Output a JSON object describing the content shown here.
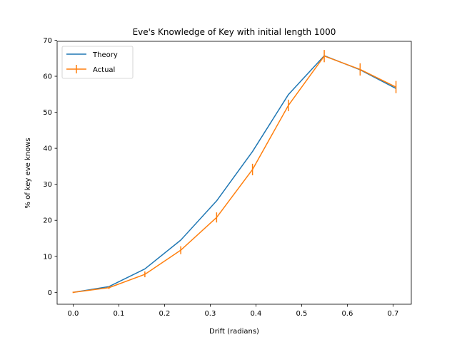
{
  "chart_data": {
    "type": "line",
    "title": "Eve's Knowledge of Key with initial length 1000",
    "xlabel": "Drift (radians)",
    "ylabel": "% of key eve knows",
    "xlim": [
      -0.035,
      0.74
    ],
    "ylim": [
      -3.3,
      69.7
    ],
    "xticks": [
      0.0,
      0.1,
      0.2,
      0.3,
      0.4,
      0.5,
      0.6,
      0.7
    ],
    "xtick_labels": [
      "0.0",
      "0.1",
      "0.2",
      "0.3",
      "0.4",
      "0.5",
      "0.6",
      "0.7"
    ],
    "yticks": [
      0,
      10,
      20,
      30,
      40,
      50,
      60,
      70
    ],
    "ytick_labels": [
      "0",
      "10",
      "20",
      "30",
      "40",
      "50",
      "60",
      "70"
    ],
    "grid": false,
    "legend_position": "top-left",
    "series": [
      {
        "name": "Theory",
        "color": "#1f77b4",
        "x": [
          0.0,
          0.0785,
          0.157,
          0.2355,
          0.314,
          0.3925,
          0.471,
          0.5495,
          0.628,
          0.7065
        ],
        "y": [
          0.0,
          1.6,
          6.5,
          14.5,
          25.4,
          39.1,
          54.9,
          65.7,
          61.8,
          56.6
        ]
      },
      {
        "name": "Actual",
        "color": "#ff7f0e",
        "x": [
          0.0,
          0.0785,
          0.157,
          0.2355,
          0.314,
          0.3925,
          0.471,
          0.5495,
          0.628,
          0.7065
        ],
        "y": [
          0.0,
          1.3,
          5.0,
          11.7,
          20.8,
          34.1,
          51.9,
          65.6,
          61.9,
          57.0
        ],
        "yerr": [
          0.2,
          0.4,
          0.8,
          1.1,
          1.4,
          1.6,
          1.6,
          1.7,
          1.7,
          1.7
        ]
      }
    ]
  }
}
